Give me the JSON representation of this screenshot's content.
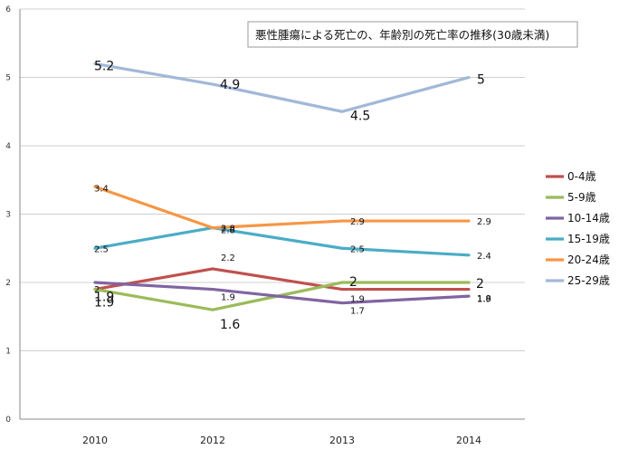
{
  "chart_data": {
    "type": "line",
    "title": "悪性腫瘍による死亡の、年齢別の死亡率の推移(30歳未満)",
    "categories": [
      "2010",
      "2012",
      "2013",
      "2014"
    ],
    "ylim": [
      0,
      6
    ],
    "yticks": [
      "0",
      "1",
      "2",
      "3",
      "4",
      "5",
      "6"
    ],
    "grid": true,
    "legend_position": "right",
    "series": [
      {
        "name": "0-4歳",
        "color": "#c0504d",
        "values": [
          1.9,
          2.2,
          1.9,
          1.9
        ],
        "labels": [
          "1.9",
          "2.2",
          "1.9",
          "1.9"
        ]
      },
      {
        "name": "5-9歳",
        "color": "#9bbb59",
        "values": [
          1.9,
          1.6,
          2,
          2
        ],
        "labels": [
          "1.9",
          "1.6",
          "2",
          "2"
        ]
      },
      {
        "name": "10-14歳",
        "color": "#8064a2",
        "values": [
          2,
          1.9,
          1.7,
          1.8
        ],
        "labels": [
          "2",
          "1.9",
          "1.7",
          "1.8"
        ]
      },
      {
        "name": "15-19歳",
        "color": "#4bacc6",
        "values": [
          2.5,
          2.8,
          2.5,
          2.4
        ],
        "labels": [
          "2.5",
          "2.8",
          "2.5",
          "2.4"
        ]
      },
      {
        "name": "20-24歳",
        "color": "#f79646",
        "values": [
          3.4,
          2.8,
          2.9,
          2.9
        ],
        "labels": [
          "3.4",
          "2.8",
          "2.9",
          "2.9"
        ]
      },
      {
        "name": "25-29歳",
        "color": "#a2b8d8",
        "values": [
          5.2,
          4.9,
          4.5,
          5
        ],
        "labels": [
          "5.2",
          "4.9",
          "4.5",
          "5"
        ]
      }
    ]
  }
}
